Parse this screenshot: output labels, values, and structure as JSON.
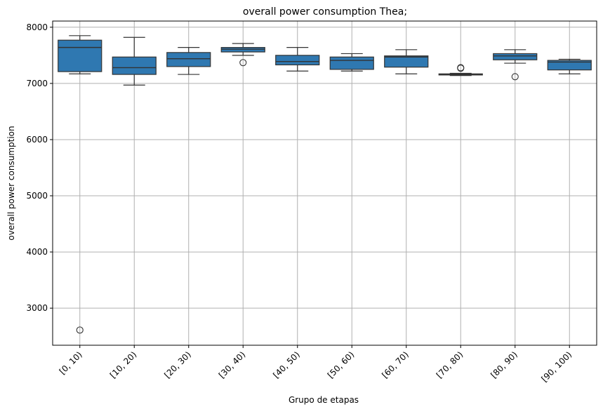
{
  "chart_data": {
    "type": "box",
    "title": "overall power consumption Thea;",
    "xlabel": "Grupo de etapas",
    "ylabel": "overall power consumption",
    "ylim": [
      2340,
      8110
    ],
    "yticks": [
      3000,
      4000,
      5000,
      6000,
      7000,
      8000
    ],
    "grid": true,
    "box_color": "#2f78b1",
    "line_color": "#333333",
    "grid_color": "#b0b0b0",
    "categories": [
      "[0, 10)",
      "[10, 20)",
      "[20, 30)",
      "[30, 40)",
      "[40, 50)",
      "[50, 60)",
      "[60, 70)",
      "[70, 80)",
      "[80, 90)",
      "[90, 100)"
    ],
    "boxes": [
      {
        "whisker_low": 7170,
        "q1": 7210,
        "median": 7640,
        "q3": 7770,
        "whisker_high": 7850,
        "outliers": [
          2610
        ]
      },
      {
        "whisker_low": 6970,
        "q1": 7160,
        "median": 7280,
        "q3": 7470,
        "whisker_high": 7820,
        "outliers": []
      },
      {
        "whisker_low": 7160,
        "q1": 7300,
        "median": 7440,
        "q3": 7550,
        "whisker_high": 7640,
        "outliers": []
      },
      {
        "whisker_low": 7500,
        "q1": 7560,
        "median": 7610,
        "q3": 7640,
        "whisker_high": 7710,
        "outliers": [
          7370
        ]
      },
      {
        "whisker_low": 7220,
        "q1": 7330,
        "median": 7390,
        "q3": 7500,
        "whisker_high": 7640,
        "outliers": []
      },
      {
        "whisker_low": 7220,
        "q1": 7250,
        "median": 7410,
        "q3": 7470,
        "whisker_high": 7530,
        "outliers": []
      },
      {
        "whisker_low": 7170,
        "q1": 7290,
        "median": 7470,
        "q3": 7490,
        "whisker_high": 7600,
        "outliers": []
      },
      {
        "whisker_low": 7140,
        "q1": 7150,
        "median": 7160,
        "q3": 7170,
        "whisker_high": 7180,
        "outliers": [
          7270,
          7280
        ]
      },
      {
        "whisker_low": 7360,
        "q1": 7420,
        "median": 7490,
        "q3": 7530,
        "whisker_high": 7600,
        "outliers": [
          7120
        ]
      },
      {
        "whisker_low": 7170,
        "q1": 7240,
        "median": 7380,
        "q3": 7410,
        "whisker_high": 7430,
        "outliers": []
      }
    ]
  }
}
